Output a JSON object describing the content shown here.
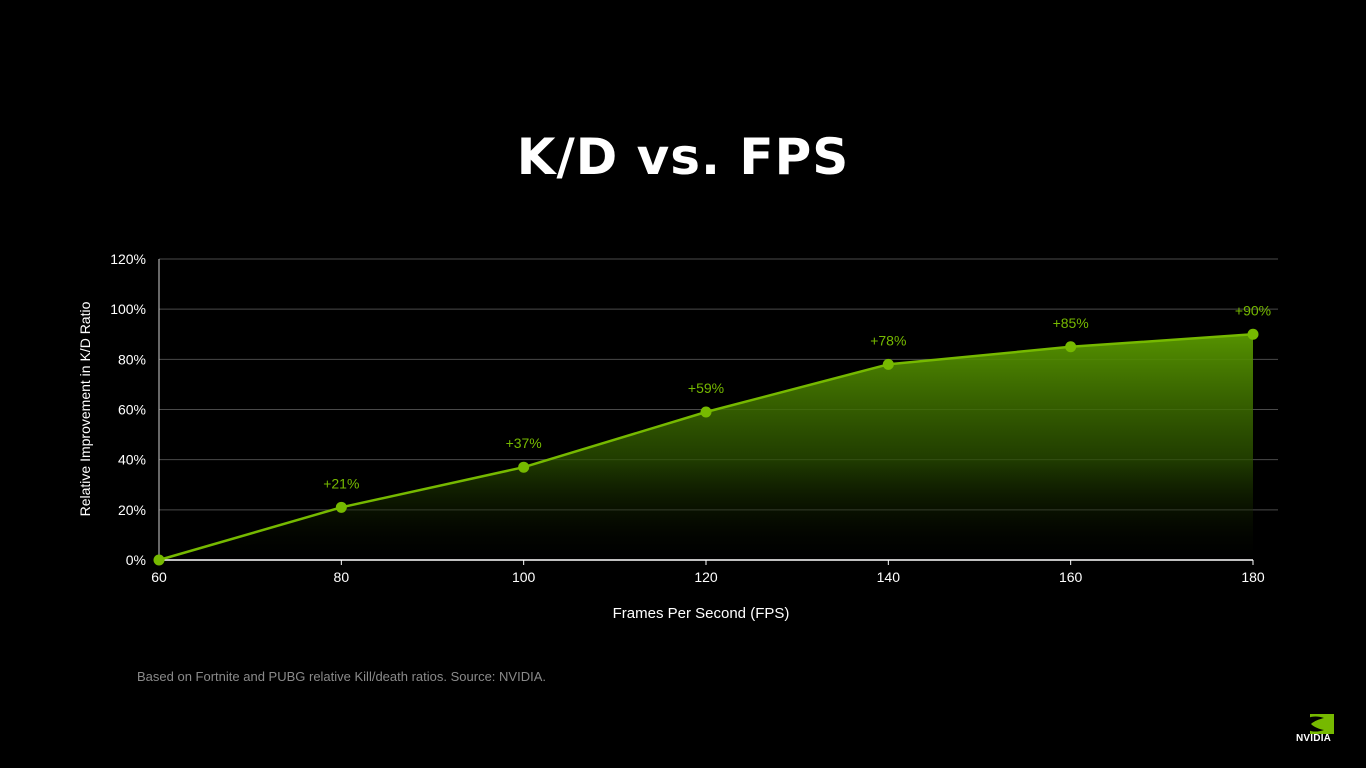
{
  "slide": {
    "title": "K/D vs. FPS",
    "footnote": "Based on Fortnite and PUBG relative Kill/death ratios. Source: NVIDIA.",
    "logo": {
      "icon": "nvidia-eye-logo-icon",
      "text": "NVIDIA"
    }
  },
  "colors": {
    "background": "#000000",
    "accent": "#76b900",
    "grid": "#4a4a4a",
    "text": "#ffffff"
  },
  "chart_data": {
    "type": "area",
    "title": "K/D vs. FPS",
    "xlabel": "Frames Per Second (FPS)",
    "ylabel": "Relative Improvement in K/D Ratio",
    "x": [
      60,
      80,
      100,
      120,
      140,
      160,
      180
    ],
    "xticks": [
      "60",
      "80",
      "100",
      "120",
      "140",
      "160",
      "180"
    ],
    "yticks": [
      "0%",
      "20%",
      "40%",
      "60%",
      "80%",
      "100%",
      "120%"
    ],
    "xlim": [
      60,
      180
    ],
    "ylim": [
      0,
      120
    ],
    "grid": true,
    "series": [
      {
        "values": [
          0,
          21,
          37,
          59,
          78,
          85,
          90
        ],
        "labels": [
          "",
          "+21%",
          "+37%",
          "+59%",
          "+78%",
          "+85%",
          "+90%"
        ],
        "color": "#76b900"
      }
    ]
  }
}
